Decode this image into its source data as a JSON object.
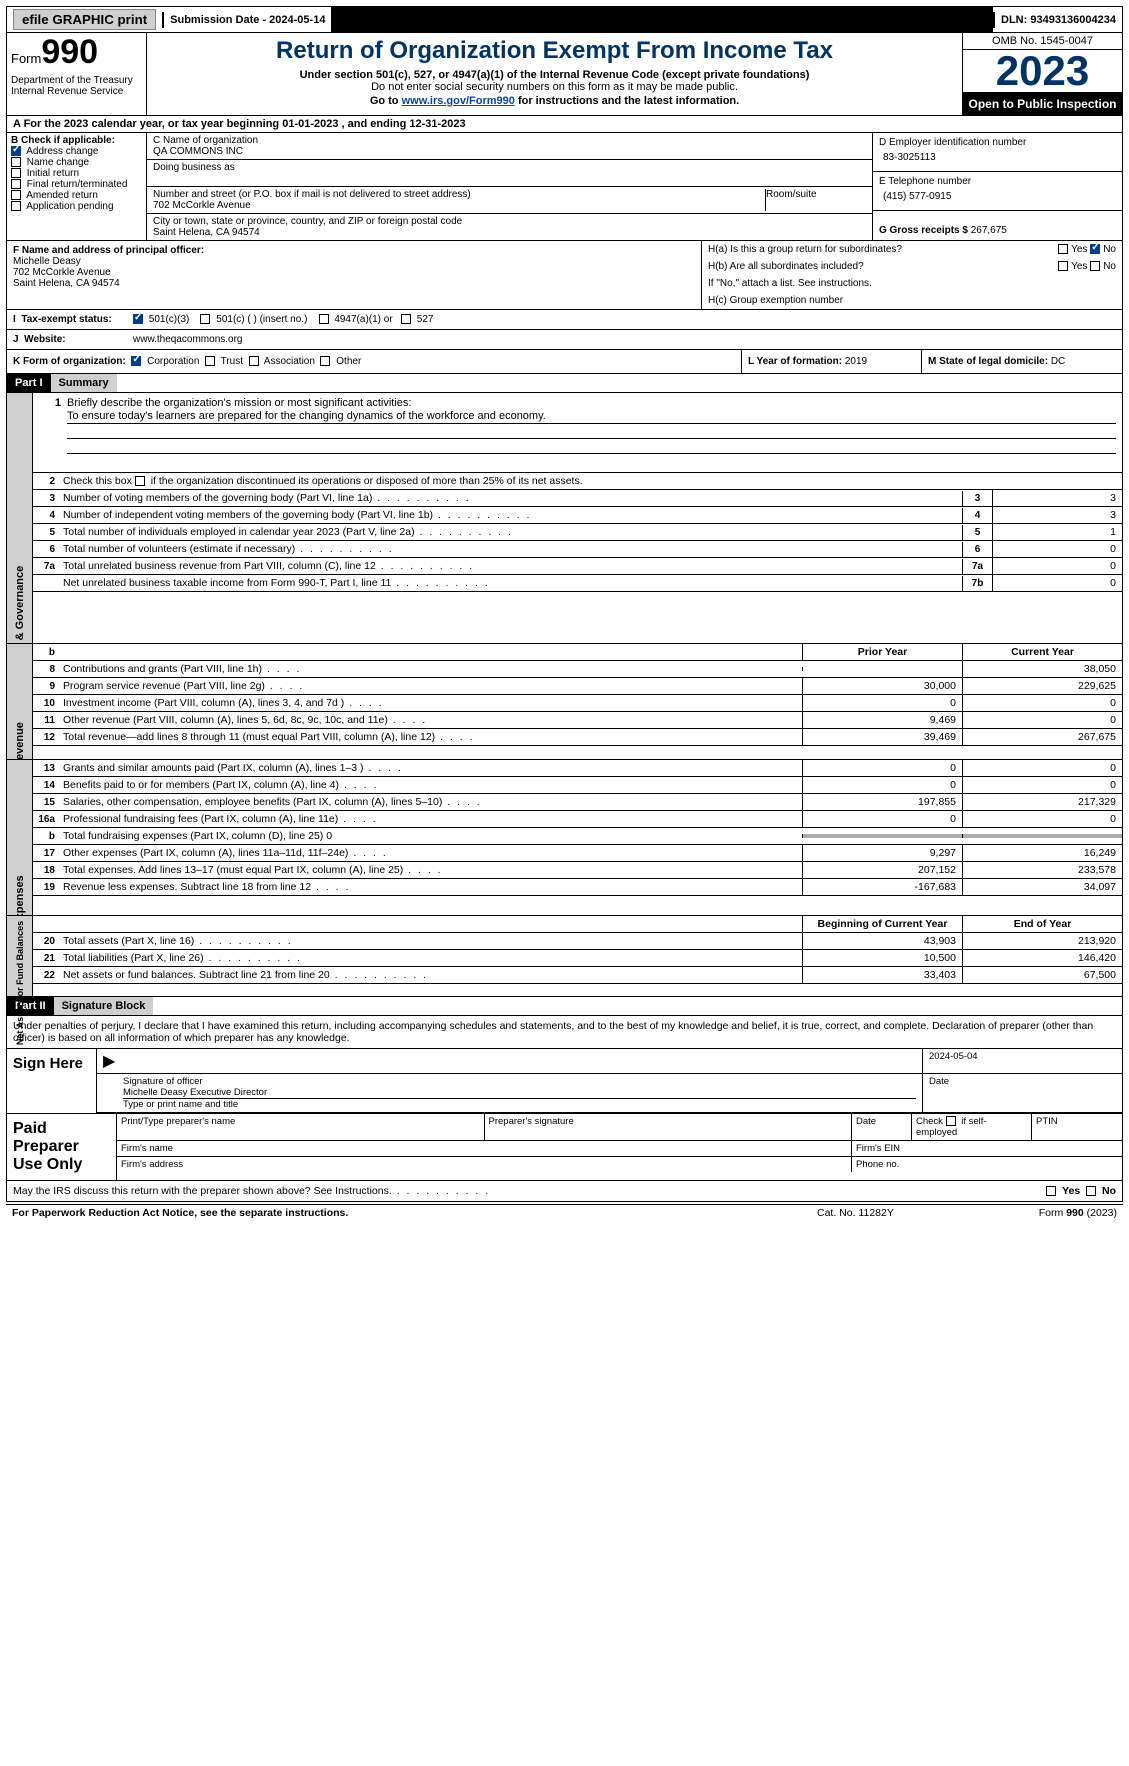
{
  "topbar": {
    "efile": "efile GRAPHIC print",
    "submission": "Submission Date - 2024-05-14",
    "dln": "DLN: 93493136004234"
  },
  "header": {
    "form_label": "Form",
    "form_no": "990",
    "title": "Return of Organization Exempt From Income Tax",
    "sub1": "Under section 501(c), 527, or 4947(a)(1) of the Internal Revenue Code (except private foundations)",
    "sub2": "Do not enter social security numbers on this form as it may be made public.",
    "sub3_pre": "Go to ",
    "sub3_link": "www.irs.gov/Form990",
    "sub3_post": " for instructions and the latest information.",
    "dept": "Department of the Treasury\nInternal Revenue Service",
    "omb": "OMB No. 1545-0047",
    "year": "2023",
    "open": "Open to Public Inspection"
  },
  "A": {
    "text_pre": "A For the 2023 calendar year, or tax year beginning ",
    "begin": "01-01-2023",
    "mid": "   , and ending ",
    "end": "12-31-2023"
  },
  "B": {
    "label": "B Check if applicable:",
    "items": [
      {
        "label": "Address change",
        "checked": true
      },
      {
        "label": "Name change",
        "checked": false
      },
      {
        "label": "Initial return",
        "checked": false
      },
      {
        "label": "Final return/terminated",
        "checked": false
      },
      {
        "label": "Amended return",
        "checked": false
      },
      {
        "label": "Application pending",
        "checked": false
      }
    ]
  },
  "C": {
    "name_lbl": "C Name of organization",
    "name": "QA COMMONS INC",
    "dba_lbl": "Doing business as",
    "addr_lbl": "Number and street (or P.O. box if mail is not delivered to street address)",
    "room_lbl": "Room/suite",
    "addr": "702 McCorkle Avenue",
    "city_lbl": "City or town, state or province, country, and ZIP or foreign postal code",
    "city": "Saint Helena, CA   94574"
  },
  "D": {
    "lbl": "D Employer identification number",
    "val": "83-3025113"
  },
  "E": {
    "lbl": "E Telephone number",
    "val": "(415) 577-0915"
  },
  "G": {
    "lbl": "G Gross receipts $",
    "val": "267,675"
  },
  "F": {
    "lbl": "F  Name and address of principal officer:",
    "name": "Michelle Deasy",
    "addr1": "702 McCorkle Avenue",
    "addr2": "Saint Helena, CA   94574"
  },
  "H": {
    "a": "H(a)  Is this a group return for subordinates?",
    "b": "H(b)  Are all subordinates included?",
    "b_note": "If \"No,\" attach a list. See instructions.",
    "c": "H(c)  Group exemption number",
    "yes": "Yes",
    "no": "No"
  },
  "I": {
    "lbl": "Tax-exempt status:",
    "opts": [
      "501(c)(3)",
      "501(c) (  ) (insert no.)",
      "4947(a)(1) or",
      "527"
    ]
  },
  "J": {
    "lbl": "Website:",
    "val": "www.theqacommons.org"
  },
  "K": {
    "lbl": "K Form of organization:",
    "opts": [
      "Corporation",
      "Trust",
      "Association",
      "Other"
    ]
  },
  "L": {
    "lbl": "L Year of formation:",
    "val": "2019"
  },
  "M": {
    "lbl": "M State of legal domicile:",
    "val": "DC"
  },
  "part1": {
    "hdr": "Part I",
    "title": "Summary",
    "mission_lbl": "Briefly describe the organization's mission or most significant activities:",
    "mission": "To ensure today's learners are prepared for the changing dynamics of the workforce and economy.",
    "line2": "Check this box      if the organization discontinued its operations or disposed of more than 25% of its net assets.",
    "sidebar1": "Activities & Governance",
    "sidebar2": "Revenue",
    "sidebar3": "Expenses",
    "sidebar4": "Net Assets or Fund Balances",
    "lines_gov": [
      {
        "n": "3",
        "d": "Number of voting members of the governing body (Part VI, line 1a)",
        "box": "3",
        "v": "3"
      },
      {
        "n": "4",
        "d": "Number of independent voting members of the governing body (Part VI, line 1b)",
        "box": "4",
        "v": "3"
      },
      {
        "n": "5",
        "d": "Total number of individuals employed in calendar year 2023 (Part V, line 2a)",
        "box": "5",
        "v": "1"
      },
      {
        "n": "6",
        "d": "Total number of volunteers (estimate if necessary)",
        "box": "6",
        "v": "0"
      },
      {
        "n": "7a",
        "d": "Total unrelated business revenue from Part VIII, column (C), line 12",
        "box": "7a",
        "v": "0"
      },
      {
        "n": "",
        "d": "Net unrelated business taxable income from Form 990-T, Part I, line 11",
        "box": "7b",
        "v": "0"
      }
    ],
    "col_hdr_prior": "Prior Year",
    "col_hdr_curr": "Current Year",
    "lines_rev": [
      {
        "n": "8",
        "d": "Contributions and grants (Part VIII, line 1h)",
        "p": "",
        "c": "38,050"
      },
      {
        "n": "9",
        "d": "Program service revenue (Part VIII, line 2g)",
        "p": "30,000",
        "c": "229,625"
      },
      {
        "n": "10",
        "d": "Investment income (Part VIII, column (A), lines 3, 4, and 7d )",
        "p": "0",
        "c": "0"
      },
      {
        "n": "11",
        "d": "Other revenue (Part VIII, column (A), lines 5, 6d, 8c, 9c, 10c, and 11e)",
        "p": "9,469",
        "c": "0"
      },
      {
        "n": "12",
        "d": "Total revenue—add lines 8 through 11 (must equal Part VIII, column (A), line 12)",
        "p": "39,469",
        "c": "267,675"
      }
    ],
    "lines_exp": [
      {
        "n": "13",
        "d": "Grants and similar amounts paid (Part IX, column (A), lines 1–3 )",
        "p": "0",
        "c": "0"
      },
      {
        "n": "14",
        "d": "Benefits paid to or for members (Part IX, column (A), line 4)",
        "p": "0",
        "c": "0"
      },
      {
        "n": "15",
        "d": "Salaries, other compensation, employee benefits (Part IX, column (A), lines 5–10)",
        "p": "197,855",
        "c": "217,329"
      },
      {
        "n": "16a",
        "d": "Professional fundraising fees (Part IX, column (A), line 11e)",
        "p": "0",
        "c": "0"
      },
      {
        "n": "b",
        "d": "Total fundraising expenses (Part IX, column (D), line 25) 0",
        "p": "",
        "c": "",
        "shaded": true
      },
      {
        "n": "17",
        "d": "Other expenses (Part IX, column (A), lines 11a–11d, 11f–24e)",
        "p": "9,297",
        "c": "16,249"
      },
      {
        "n": "18",
        "d": "Total expenses. Add lines 13–17 (must equal Part IX, column (A), line 25)",
        "p": "207,152",
        "c": "233,578"
      },
      {
        "n": "19",
        "d": "Revenue less expenses. Subtract line 18 from line 12",
        "p": "-167,683",
        "c": "34,097"
      }
    ],
    "col_hdr_beg": "Beginning of Current Year",
    "col_hdr_end": "End of Year",
    "lines_net": [
      {
        "n": "20",
        "d": "Total assets (Part X, line 16)",
        "p": "43,903",
        "c": "213,920"
      },
      {
        "n": "21",
        "d": "Total liabilities (Part X, line 26)",
        "p": "10,500",
        "c": "146,420"
      },
      {
        "n": "22",
        "d": "Net assets or fund balances. Subtract line 21 from line 20",
        "p": "33,403",
        "c": "67,500"
      }
    ]
  },
  "part2": {
    "hdr": "Part II",
    "title": "Signature Block",
    "decl": "Under penalties of perjury, I declare that I have examined this return, including accompanying schedules and statements, and to the best of my knowledge and belief, it is true, correct, and complete. Declaration of preparer (other than officer) is based on all information of which preparer has any knowledge.",
    "sign_here": "Sign Here",
    "sig_date": "2024-05-04",
    "sig_lbl": "Signature of officer",
    "date_lbl": "Date",
    "sig_name": "Michelle Deasy  Executive Director",
    "type_lbl": "Type or print name and title",
    "paid": "Paid Preparer Use Only",
    "prep_name": "Print/Type preparer's name",
    "prep_sig": "Preparer's signature",
    "prep_date": "Date",
    "prep_chk": "Check      if self-employed",
    "ptin": "PTIN",
    "firm_name": "Firm's name",
    "firm_ein": "Firm's EIN",
    "firm_addr": "Firm's address",
    "firm_phone": "Phone no.",
    "discuss": "May the IRS discuss this return with the preparer shown above? See Instructions."
  },
  "footer": {
    "pra": "For Paperwork Reduction Act Notice, see the separate instructions.",
    "cat": "Cat. No. 11282Y",
    "form": "Form 990 (2023)"
  }
}
